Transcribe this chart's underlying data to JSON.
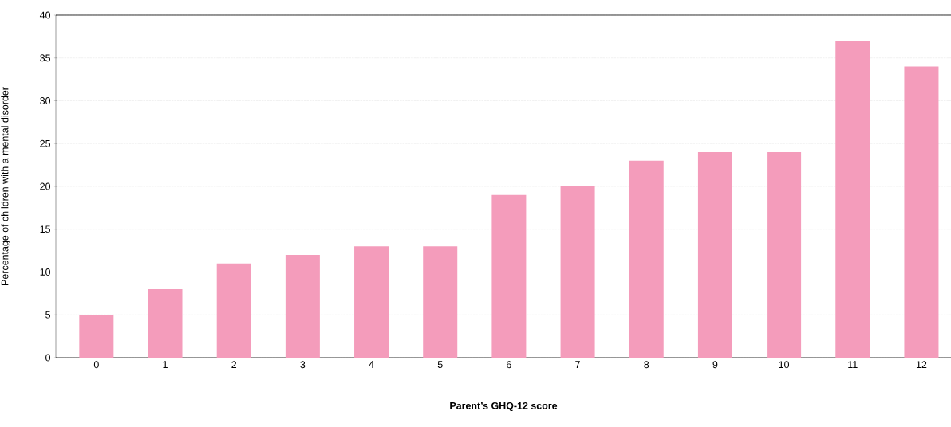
{
  "chart_data": {
    "type": "bar",
    "xlabel": "Parent’s GHQ-12 score",
    "ylabel": "Percentage of children with a mental disorder",
    "categories": [
      "0",
      "1",
      "2",
      "3",
      "4",
      "5",
      "6",
      "7",
      "8",
      "9",
      "10",
      "11",
      "12"
    ],
    "values": [
      5,
      8,
      11,
      12,
      13,
      13,
      19,
      20,
      23,
      24,
      24,
      37,
      34
    ],
    "color": "#f49cbb",
    "ylim": [
      0,
      40
    ],
    "yticks": [
      0,
      5,
      10,
      15,
      20,
      25,
      30,
      35,
      40
    ],
    "grid": "y"
  }
}
